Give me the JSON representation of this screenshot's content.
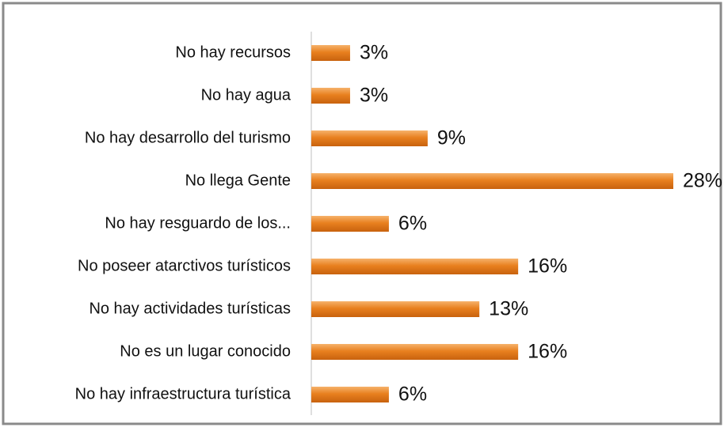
{
  "chart_data": {
    "type": "bar",
    "orientation": "horizontal",
    "categories": [
      "No hay recursos",
      "No hay agua",
      "No hay desarrollo del turismo",
      "No llega Gente",
      "No hay resguardo de los...",
      "No poseer atarctivos turísticos",
      "No hay actividades turísticas",
      "No es un lugar conocido",
      "No hay infraestructura turística"
    ],
    "values": [
      3,
      3,
      9,
      28,
      6,
      16,
      13,
      16,
      6
    ],
    "value_labels": [
      "3%",
      "3%",
      "9%",
      "28%",
      "6%",
      "16%",
      "13%",
      "16%",
      "6%"
    ],
    "color": "#e8801f"
  }
}
